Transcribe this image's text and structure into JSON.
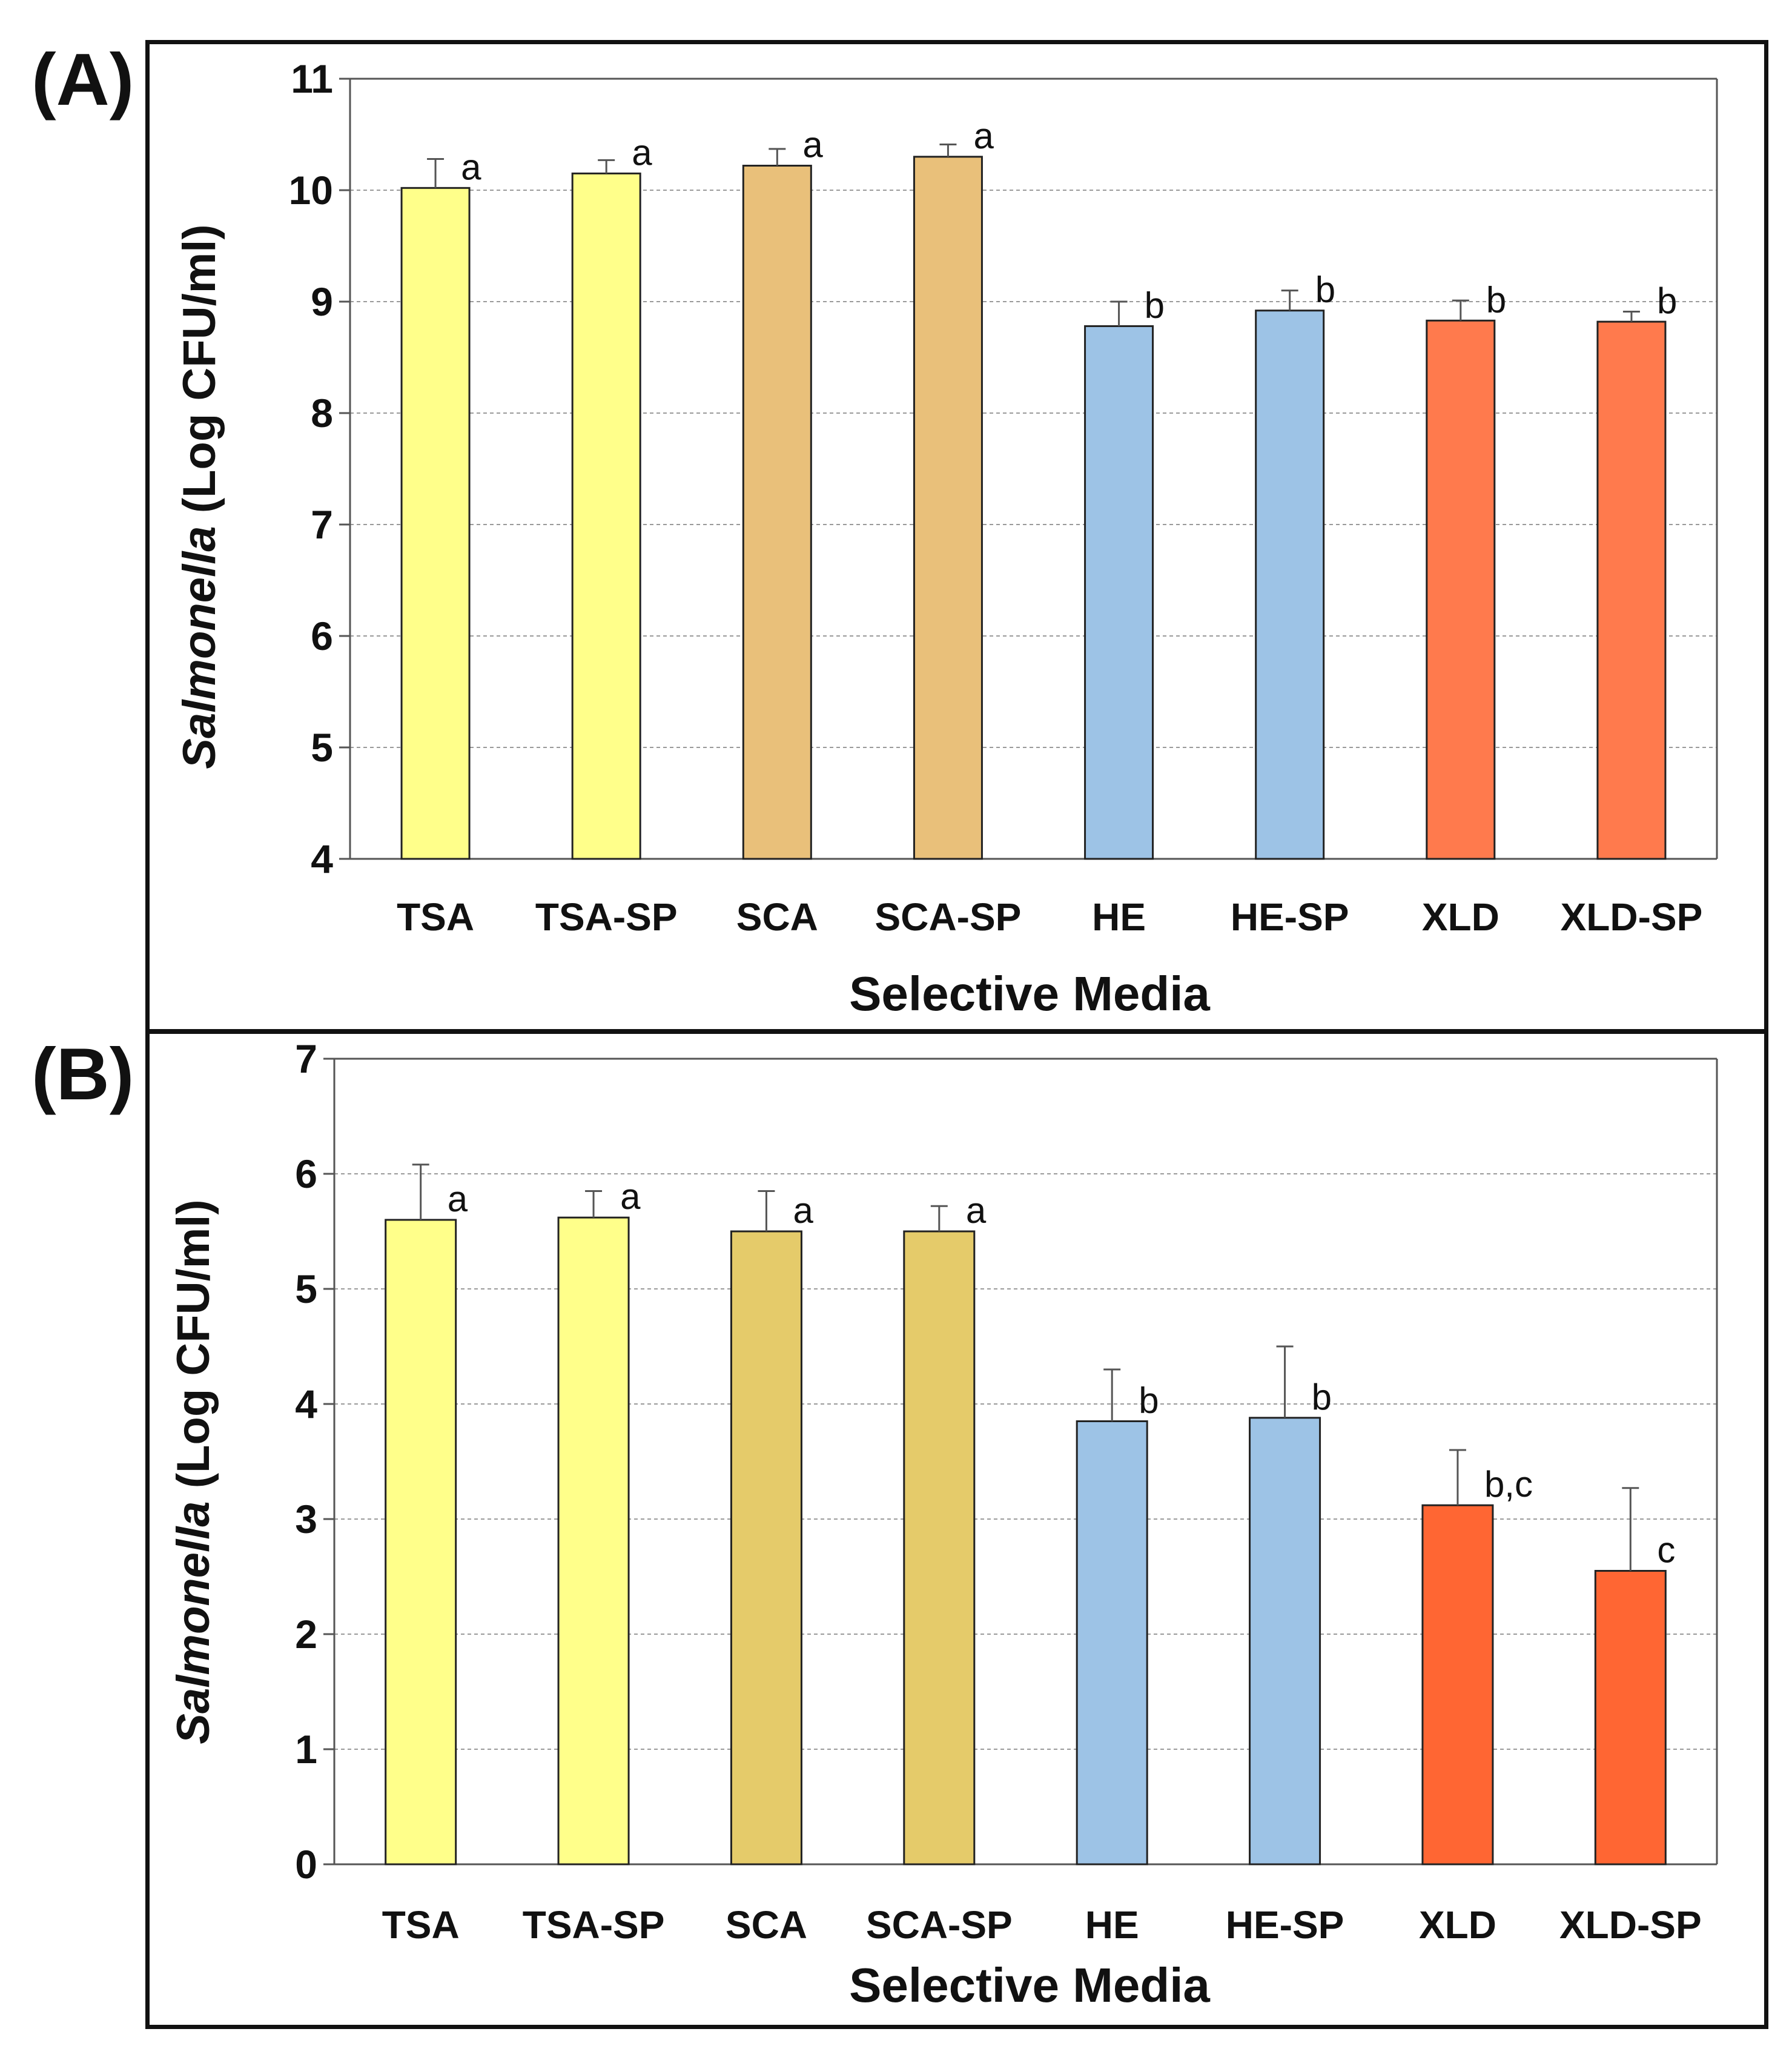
{
  "chart_data": [
    {
      "type": "bar",
      "panel_label": "(A)",
      "title": "",
      "xlabel": "Selective Media",
      "ylabel_italic": "Salmonella",
      "ylabel_rest": " (Log CFU/ml)",
      "ylim": [
        4,
        11
      ],
      "yticks": [
        "4",
        "5",
        "6",
        "7",
        "8",
        "9",
        "10",
        "11"
      ],
      "categories": [
        "TSA",
        "TSA-SP",
        "SCA",
        "SCA-SP",
        "HE",
        "HE-SP",
        "XLD",
        "XLD-SP"
      ],
      "values": [
        10.02,
        10.15,
        10.22,
        10.3,
        8.78,
        8.92,
        8.83,
        8.82
      ],
      "errors": [
        0.26,
        0.12,
        0.15,
        0.11,
        0.22,
        0.18,
        0.18,
        0.09
      ],
      "significance": [
        "a",
        "a",
        "a",
        "a",
        "b",
        "b",
        "b",
        "b"
      ],
      "colors": [
        "#FFFF8A",
        "#FFFF8A",
        "#E9C07A",
        "#E9C07A",
        "#9DC3E6",
        "#9DC3E6",
        "#FF7A4D",
        "#FF7A4D"
      ],
      "grid": true
    },
    {
      "type": "bar",
      "panel_label": "(B)",
      "title": "",
      "xlabel": "Selective Media",
      "ylabel_italic": "Salmonella",
      "ylabel_rest": " (Log CFU/ml)",
      "ylim": [
        0,
        7
      ],
      "yticks": [
        "0",
        "1",
        "2",
        "3",
        "4",
        "5",
        "6",
        "7"
      ],
      "categories": [
        "TSA",
        "TSA-SP",
        "SCA",
        "SCA-SP",
        "HE",
        "HE-SP",
        "XLD",
        "XLD-SP"
      ],
      "values": [
        5.6,
        5.62,
        5.5,
        5.5,
        3.85,
        3.88,
        3.12,
        2.55
      ],
      "errors": [
        0.48,
        0.23,
        0.35,
        0.22,
        0.45,
        0.62,
        0.48,
        0.72
      ],
      "significance": [
        "a",
        "a",
        "a",
        "a",
        "b",
        "b",
        "b,c",
        "c"
      ],
      "colors": [
        "#FFFF8A",
        "#FFFF8A",
        "#E5CB6A",
        "#E5CB6A",
        "#9DC3E6",
        "#9DC3E6",
        "#FF6633",
        "#FF6633"
      ],
      "grid": true
    }
  ]
}
